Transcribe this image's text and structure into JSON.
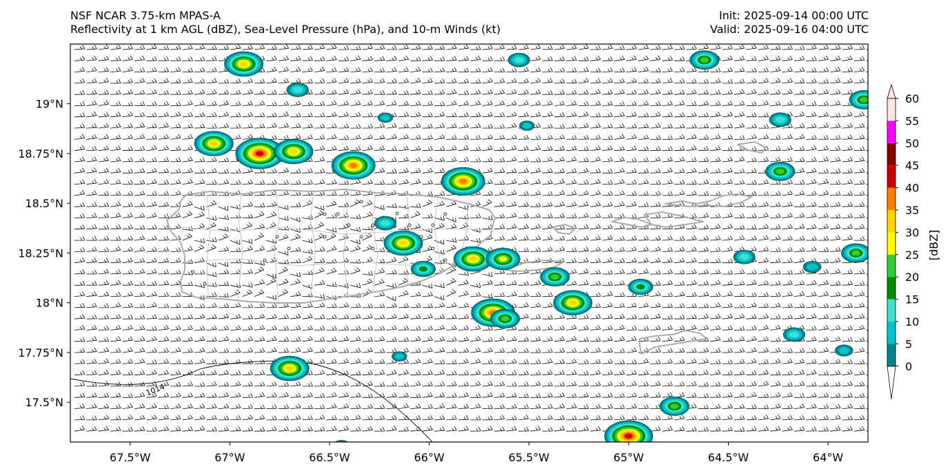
{
  "header": {
    "model_title": "NSF NCAR 3.75-km MPAS-A",
    "fields_title": "Reflectivity at 1 km AGL (dBZ), Sea-Level Pressure (hPa), and 10-m Winds (kt)",
    "init_time": "Init: 2025-09-14 00:00 UTC",
    "valid_time": "Valid: 2025-09-16 04:00 UTC"
  },
  "map": {
    "region": "Puerto Rico and U.S./British Virgin Islands",
    "lon_range": [
      -67.8,
      -63.8
    ],
    "lat_range": [
      17.3,
      19.3
    ],
    "lat_ticks": [
      {
        "value": 19.0,
        "label": "19°N"
      },
      {
        "value": 18.75,
        "label": "18.75°N"
      },
      {
        "value": 18.5,
        "label": "18.5°N"
      },
      {
        "value": 18.25,
        "label": "18.25°N"
      },
      {
        "value": 18.0,
        "label": "18°N"
      },
      {
        "value": 17.75,
        "label": "17.75°N"
      },
      {
        "value": 17.5,
        "label": "17.5°N"
      }
    ],
    "lon_ticks": [
      {
        "value": -67.5,
        "label": "67.5°W"
      },
      {
        "value": -67.0,
        "label": "67°W"
      },
      {
        "value": -66.5,
        "label": "66.5°W"
      },
      {
        "value": -66.0,
        "label": "66°W"
      },
      {
        "value": -65.5,
        "label": "65.5°W"
      },
      {
        "value": -65.0,
        "label": "65°W"
      },
      {
        "value": -64.5,
        "label": "64.5°W"
      },
      {
        "value": -64.0,
        "label": "64°W"
      }
    ],
    "isobar_label": "1014",
    "land_color": "#aaaaaa",
    "wind_barb_color": "#000000"
  },
  "colorbar": {
    "label": "[dBZ]",
    "ticks": [
      "0",
      "5",
      "10",
      "15",
      "20",
      "25",
      "30",
      "35",
      "40",
      "45",
      "50",
      "55",
      "60"
    ],
    "colors": [
      "#00868b",
      "#00c5cd",
      "#40e0d0",
      "#008b00",
      "#32cd32",
      "#ffff00",
      "#ffd700",
      "#ff7f00",
      "#cd0000",
      "#8b0000",
      "#ff00ff",
      "#ffe4e1"
    ]
  },
  "echoes": [
    {
      "lon": -67.08,
      "lat": 18.8,
      "dbz": 30
    },
    {
      "lon": -66.85,
      "lat": 18.75,
      "dbz": 40
    },
    {
      "lon": -66.68,
      "lat": 18.76,
      "dbz": 30
    },
    {
      "lon": -66.38,
      "lat": 18.69,
      "dbz": 35
    },
    {
      "lon": -65.83,
      "lat": 18.61,
      "dbz": 35
    },
    {
      "lon": -66.93,
      "lat": 19.2,
      "dbz": 30
    },
    {
      "lon": -66.66,
      "lat": 19.07,
      "dbz": 12
    },
    {
      "lon": -66.13,
      "lat": 18.3,
      "dbz": 30
    },
    {
      "lon": -66.22,
      "lat": 18.4,
      "dbz": 12
    },
    {
      "lon": -65.78,
      "lat": 18.22,
      "dbz": 30
    },
    {
      "lon": -65.63,
      "lat": 18.22,
      "dbz": 25
    },
    {
      "lon": -66.03,
      "lat": 18.17,
      "dbz": 15
    },
    {
      "lon": -65.68,
      "lat": 17.95,
      "dbz": 35
    },
    {
      "lon": -65.62,
      "lat": 17.92,
      "dbz": 20
    },
    {
      "lon": -65.28,
      "lat": 18.0,
      "dbz": 30
    },
    {
      "lon": -65.37,
      "lat": 18.13,
      "dbz": 20
    },
    {
      "lon": -64.94,
      "lat": 18.08,
      "dbz": 15
    },
    {
      "lon": -65.0,
      "lat": 17.33,
      "dbz": 40
    },
    {
      "lon": -64.77,
      "lat": 17.48,
      "dbz": 20
    },
    {
      "lon": -66.7,
      "lat": 17.67,
      "dbz": 30
    },
    {
      "lon": -64.24,
      "lat": 18.66,
      "dbz": 20
    },
    {
      "lon": -63.86,
      "lat": 18.25,
      "dbz": 20
    },
    {
      "lon": -64.62,
      "lat": 19.22,
      "dbz": 20
    },
    {
      "lon": -65.55,
      "lat": 19.22,
      "dbz": 12
    },
    {
      "lon": -63.82,
      "lat": 19.02,
      "dbz": 20
    },
    {
      "lon": -64.42,
      "lat": 18.23,
      "dbz": 12
    },
    {
      "lon": -64.17,
      "lat": 17.84,
      "dbz": 12
    },
    {
      "lon": -64.24,
      "lat": 18.92,
      "dbz": 12
    },
    {
      "lon": -64.08,
      "lat": 18.18,
      "dbz": 8
    },
    {
      "lon": -63.92,
      "lat": 17.76,
      "dbz": 8
    },
    {
      "lon": -66.22,
      "lat": 18.93,
      "dbz": 5
    },
    {
      "lon": -65.51,
      "lat": 18.89,
      "dbz": 5
    },
    {
      "lon": -66.15,
      "lat": 17.73,
      "dbz": 5
    },
    {
      "lon": -66.44,
      "lat": 17.28,
      "dbz": 8
    }
  ]
}
